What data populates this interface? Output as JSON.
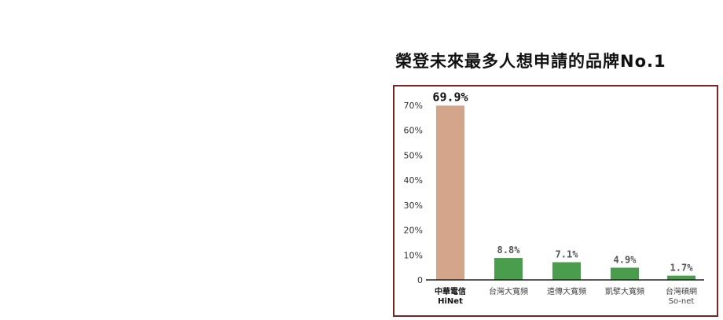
{
  "chart_data": {
    "type": "bar",
    "title": "榮登未來最多人想申請的品牌No.1",
    "categories": [
      "中華電信\nHiNet",
      "台灣大寬頻",
      "遠傳大寬頻",
      "凱擘大寬頻",
      "台灣碩網\nSo-net"
    ],
    "values": [
      69.9,
      8.8,
      7.1,
      4.9,
      1.7
    ],
    "value_labels": [
      "69.9%",
      "8.8%",
      "7.1%",
      "4.9%",
      "1.7%"
    ],
    "ytick_labels": [
      "0",
      "10%",
      "20%",
      "30%",
      "40%",
      "50%",
      "60%",
      "70%"
    ],
    "ytick_values": [
      0,
      10,
      20,
      30,
      40,
      50,
      60,
      70
    ],
    "ylim": [
      0,
      70
    ],
    "bar_colors": [
      "#d3a68b",
      "#4a9d4d",
      "#4a9d4d",
      "#4a9d4d",
      "#4a9d4d"
    ],
    "label_colors": [
      "#111111",
      "#555555",
      "#555555",
      "#555555",
      "#555555"
    ],
    "frame_color": "#7a2424",
    "grid": false,
    "legend": "none"
  }
}
